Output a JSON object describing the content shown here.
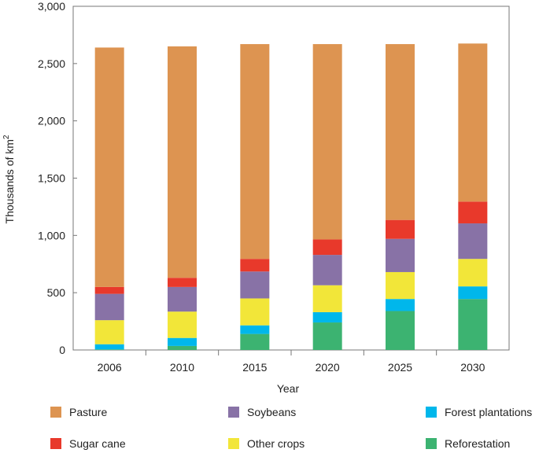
{
  "chart_data": {
    "type": "bar",
    "stacked": true,
    "categories": [
      "2006",
      "2010",
      "2015",
      "2020",
      "2025",
      "2030"
    ],
    "series": [
      {
        "name": "Reforestation",
        "color": "#3cb371",
        "values": [
          5,
          35,
          140,
          240,
          340,
          445
        ]
      },
      {
        "name": "Forest plantations",
        "color": "#00b7eb",
        "values": [
          45,
          70,
          75,
          90,
          105,
          110
        ]
      },
      {
        "name": "Other crops",
        "color": "#f2e639",
        "values": [
          210,
          230,
          235,
          235,
          235,
          240
        ]
      },
      {
        "name": "Soybeans",
        "color": "#8872a6",
        "values": [
          230,
          215,
          235,
          265,
          290,
          310
        ]
      },
      {
        "name": "Sugar cane",
        "color": "#e8392b",
        "values": [
          60,
          80,
          110,
          135,
          165,
          190
        ]
      },
      {
        "name": "Pasture",
        "color": "#dd9451",
        "values": [
          2090,
          2020,
          1875,
          1705,
          1535,
          1380
        ]
      }
    ],
    "xlabel": "Year",
    "ylabel": "Thousands of km",
    "ylabel_superscript": "2",
    "ylim": [
      0,
      3000
    ],
    "yticks": [
      0,
      500,
      1000,
      1500,
      2000,
      2500,
      3000
    ],
    "ytick_labels": [
      "0",
      "500",
      "1,000",
      "1,500",
      "2,000",
      "2,500",
      "3,000"
    ],
    "grid": false,
    "legend_position": "bottom"
  },
  "legend": {
    "items": [
      {
        "label": "Pasture",
        "color": "#dd9451"
      },
      {
        "label": "Soybeans",
        "color": "#8872a6"
      },
      {
        "label": "Forest plantations",
        "color": "#00b7eb"
      },
      {
        "label": "Sugar cane",
        "color": "#e8392b"
      },
      {
        "label": "Other crops",
        "color": "#f2e639"
      },
      {
        "label": "Reforestation",
        "color": "#3cb371"
      }
    ]
  }
}
